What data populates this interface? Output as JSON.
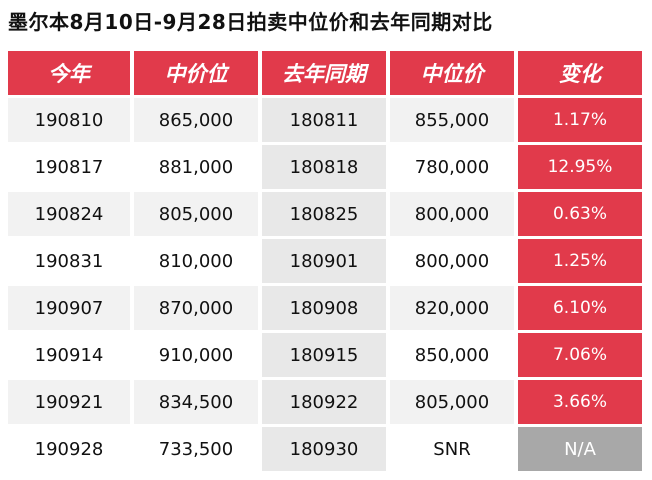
{
  "title": "墨尔本8月10日-9月28日拍卖中位价和去年同期对比",
  "headers": [
    "今年",
    "中价位",
    "去年同期",
    "中位价",
    "变化"
  ],
  "rows": [
    {
      "date": "190810",
      "median": "865,000",
      "ly_date": "180811",
      "ly_median": "855,000",
      "change": "1.17%"
    },
    {
      "date": "190817",
      "median": "881,000",
      "ly_date": "180818",
      "ly_median": "780,000",
      "change": "12.95%"
    },
    {
      "date": "190824",
      "median": "805,000",
      "ly_date": "180825",
      "ly_median": "800,000",
      "change": "0.63%"
    },
    {
      "date": "190831",
      "median": "810,000",
      "ly_date": "180901",
      "ly_median": "800,000",
      "change": "1.25%"
    },
    {
      "date": "190907",
      "median": "870,000",
      "ly_date": "180908",
      "ly_median": "820,000",
      "change": "6.10%"
    },
    {
      "date": "190914",
      "median": "910,000",
      "ly_date": "180915",
      "ly_median": "850,000",
      "change": "7.06%"
    },
    {
      "date": "190921",
      "median": "834,500",
      "ly_date": "180922",
      "ly_median": "805,000",
      "change": "3.66%"
    },
    {
      "date": "190928",
      "median": "733,500",
      "ly_date": "180930",
      "ly_median": "SNR",
      "change": "N/A"
    }
  ],
  "colors": {
    "header": "#e13a4b",
    "change": "#e13a4b",
    "na": "#a8a8a8"
  }
}
